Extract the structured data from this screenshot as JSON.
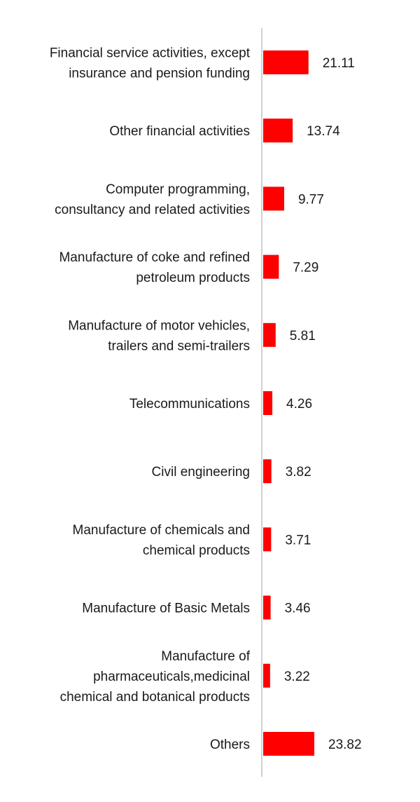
{
  "chart_data": {
    "type": "bar",
    "orientation": "horizontal",
    "title": "",
    "xlabel": "",
    "ylabel": "",
    "xlim": [
      0,
      30
    ],
    "grid": false,
    "bar_color": "#ff0000",
    "axis_color": "#d0d0d0",
    "categories": [
      [
        "Financial service activities, except",
        "insurance and pension funding"
      ],
      [
        "Other financial activities"
      ],
      [
        "Computer programming,",
        "consultancy and related activities"
      ],
      [
        "Manufacture of coke and refined",
        "petroleum products"
      ],
      [
        "Manufacture of motor vehicles,",
        "trailers and semi-trailers"
      ],
      [
        "Telecommunications"
      ],
      [
        "Civil engineering"
      ],
      [
        "Manufacture of chemicals and",
        "chemical products"
      ],
      [
        "Manufacture of Basic Metals"
      ],
      [
        "Manufacture of",
        "pharmaceuticals,medicinal",
        "chemical and botanical products"
      ],
      [
        "Others"
      ]
    ],
    "values": [
      21.11,
      13.74,
      9.77,
      7.29,
      5.81,
      4.26,
      3.82,
      3.71,
      3.46,
      3.22,
      23.82
    ],
    "value_labels": [
      "21.11",
      "13.74",
      "9.77",
      "7.29",
      "5.81",
      "4.26",
      "3.82",
      "3.71",
      "3.46",
      "3.22",
      "23.82"
    ]
  }
}
